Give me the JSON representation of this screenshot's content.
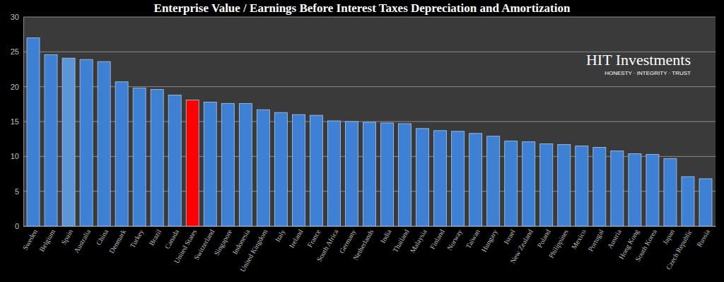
{
  "chart_data": {
    "type": "bar",
    "title": "Enterprise Value / Earnings Before Interest Taxes Depreciation and Amortization",
    "annotations": [
      "HIT Investments",
      "HONESTY · INTEGRITY · TRUST"
    ],
    "categories": [
      "Sweden",
      "Belgium",
      "Spain",
      "Australia",
      "China",
      "Denmark",
      "Turkey",
      "Brazil",
      "Canada",
      "United States",
      "Switzerland",
      "Singapore",
      "Indonesia",
      "United Kingdom",
      "Italy",
      "Ireland",
      "France",
      "South Africa",
      "Germany",
      "Netherlands",
      "India",
      "Thailand",
      "Malaysia",
      "Finland",
      "Norway",
      "Taiwan",
      "Hungary",
      "Israel",
      "New Zealand",
      "Poland",
      "Philippines",
      "Mexico",
      "Portugal",
      "Austria",
      "Hong Kong",
      "South Korea",
      "Japan",
      "Czech Republic",
      "Russia"
    ],
    "values": [
      27.0,
      24.6,
      24.1,
      23.9,
      23.6,
      20.7,
      19.8,
      19.6,
      18.8,
      18.1,
      17.8,
      17.6,
      17.6,
      16.7,
      16.3,
      16.0,
      15.9,
      15.1,
      15.0,
      14.9,
      14.8,
      14.7,
      14.0,
      13.7,
      13.6,
      13.3,
      12.9,
      12.2,
      12.1,
      11.8,
      11.7,
      11.5,
      11.3,
      10.8,
      10.4,
      10.3,
      9.7,
      7.1,
      6.8
    ],
    "colors": [
      "#3d80d4",
      "#3d80d4",
      "#5c95d8",
      "#3d80d4",
      "#3d80d4",
      "#3d80d4",
      "#3d80d4",
      "#3d80d4",
      "#3d80d4",
      "#ff0000",
      "#3d80d4",
      "#3d80d4",
      "#3d80d4",
      "#3d80d4",
      "#3d80d4",
      "#3d80d4",
      "#3d80d4",
      "#3d80d4",
      "#3d80d4",
      "#3d80d4",
      "#3d80d4",
      "#3d80d4",
      "#3d80d4",
      "#3d80d4",
      "#3d80d4",
      "#3d80d4",
      "#3d80d4",
      "#3d80d4",
      "#3d80d4",
      "#3d80d4",
      "#3d80d4",
      "#3d80d4",
      "#3d80d4",
      "#3d80d4",
      "#3d80d4",
      "#3d80d4",
      "#3d80d4",
      "#3d80d4",
      "#3d80d4"
    ],
    "ylim": [
      0,
      30
    ],
    "yticks": [
      0,
      5,
      10,
      15,
      20,
      25,
      30
    ],
    "grid": true
  }
}
